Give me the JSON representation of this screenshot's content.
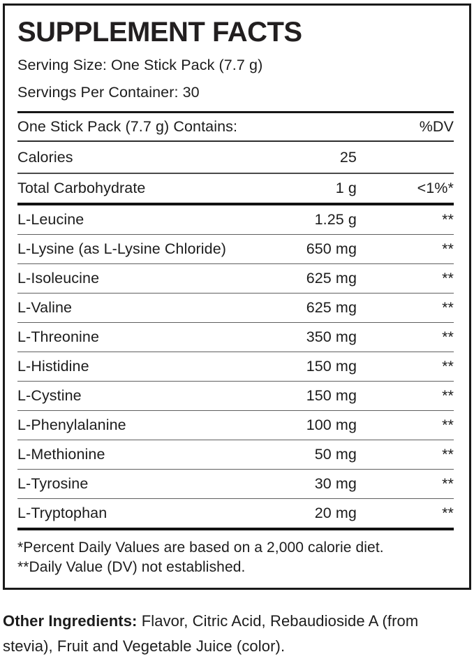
{
  "colors": {
    "background": "#ffffff",
    "text": "#1c1c1c",
    "panel_border": "#1a1a1a",
    "rule_thick": "#121212",
    "rule_thin": "#5f5f5f"
  },
  "label": {
    "title": "SUPPLEMENT FACTS",
    "serving_size": "Serving Size: One Stick Pack (7.7 g)",
    "servings_per_container": "Servings Per Container: 30",
    "columns": {
      "contains": "One Stick Pack (7.7 g) Contains:",
      "daily_value": "%DV"
    },
    "rows": [
      {
        "name": "Calories",
        "amount": "25",
        "dv": ""
      },
      {
        "name": "Total Carbohydrate",
        "amount": "1 g",
        "dv": "<1%*"
      },
      {
        "name": "L-Leucine",
        "amount": "1.25 g",
        "dv": "**"
      },
      {
        "name": "L-Lysine (as L-Lysine Chloride)",
        "amount": "650 mg",
        "dv": "**"
      },
      {
        "name": "L-Isoleucine",
        "amount": "625 mg",
        "dv": "**"
      },
      {
        "name": "L-Valine",
        "amount": "625 mg",
        "dv": "**"
      },
      {
        "name": "L-Threonine",
        "amount": "350 mg",
        "dv": "**"
      },
      {
        "name": "L-Histidine",
        "amount": "150 mg",
        "dv": "**"
      },
      {
        "name": "L-Cystine",
        "amount": "150 mg",
        "dv": "**"
      },
      {
        "name": "L-Phenylalanine",
        "amount": "100 mg",
        "dv": "**"
      },
      {
        "name": "L-Methionine",
        "amount": "50 mg",
        "dv": "**"
      },
      {
        "name": "L-Tyrosine",
        "amount": "30 mg",
        "dv": "**"
      },
      {
        "name": "L-Tryptophan",
        "amount": "20 mg",
        "dv": "**"
      }
    ],
    "footnotes": [
      "*Percent Daily Values are based on a 2,000 calorie diet.",
      "**Daily Value (DV) not established."
    ],
    "other_ingredients": {
      "label": "Other Ingredients:",
      "text": " Flavor, Citric Acid, Rebaudioside A (from stevia), Fruit and Vegetable Juice (color)."
    }
  }
}
